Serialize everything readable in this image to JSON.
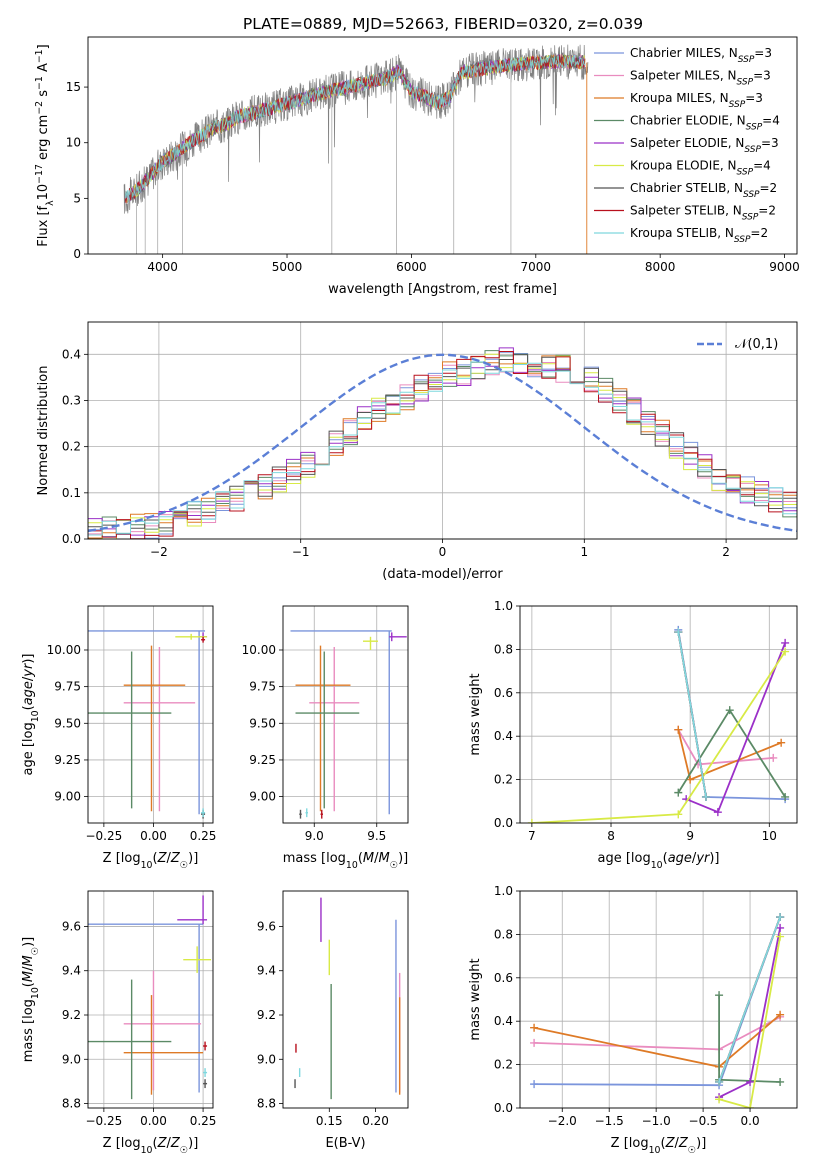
{
  "figure": {
    "title": "PLATE=0889, MJD=52663, FIBERID=0320, z=0.039"
  },
  "chart_data": [
    {
      "id": "spectrum",
      "type": "line",
      "xlabel": "wavelength [Angstrom, rest frame]",
      "ylabel": "Flux [f_λ10^-17 erg cm^-2 s^-1 A^-1]",
      "xlim": [
        3400,
        9100
      ],
      "ylim": [
        0,
        19.5
      ],
      "xticks": [
        4000,
        5000,
        6000,
        7000,
        8000,
        9000
      ],
      "yticks": [
        0,
        5,
        10,
        15
      ],
      "legend": "top-right",
      "grid": false,
      "series": [
        {
          "name": "Chabrier MILES, N_SSP=3",
          "color": "#7b95dc"
        },
        {
          "name": "Salpeter MILES, N_SSP=3",
          "color": "#e98cbf"
        },
        {
          "name": "Kroupa MILES, N_SSP=3",
          "color": "#de7a26"
        },
        {
          "name": "Chabrier ELODIE, N_SSP=4",
          "color": "#5b8a66"
        },
        {
          "name": "Salpeter ELODIE, N_SSP=3",
          "color": "#9b30c8"
        },
        {
          "name": "Kroupa ELODIE, N_SSP=4",
          "color": "#d8ea46"
        },
        {
          "name": "Chabrier STELIB, N_SSP=2",
          "color": "#555555"
        },
        {
          "name": "Salpeter STELIB, N_SSP=2",
          "color": "#b8101d"
        },
        {
          "name": "Kroupa STELIB, N_SSP=2",
          "color": "#7fd8de"
        }
      ],
      "observed_color": "#808080",
      "approx_continuum": {
        "x": [
          3700,
          3800,
          3900,
          4000,
          4100,
          4200,
          4300,
          4400,
          4500,
          4600,
          4800,
          5000,
          5200,
          5400,
          5600,
          5800,
          5900,
          6000,
          6100,
          6200,
          6300,
          6400,
          6600,
          6800,
          7000,
          7200,
          7400
        ],
        "y": [
          5.0,
          5.8,
          7.0,
          8.3,
          9.0,
          9.9,
          10.5,
          11.3,
          11.6,
          12.3,
          12.9,
          13.5,
          14.2,
          14.8,
          15.3,
          15.8,
          16.4,
          14.6,
          14.2,
          13.6,
          14.0,
          16.3,
          16.7,
          17.0,
          17.2,
          17.3,
          17.2
        ]
      }
    },
    {
      "id": "residuals",
      "type": "line",
      "xlabel": "(data-model)/error",
      "ylabel": "Normed distribution",
      "xlim": [
        -2.5,
        2.5
      ],
      "ylim": [
        0,
        0.47
      ],
      "xticks": [
        -2,
        -1,
        0,
        1,
        2
      ],
      "yticks": [
        0.0,
        0.1,
        0.2,
        0.3,
        0.4
      ],
      "grid": true,
      "legend": "top-right",
      "gaussian_label": "𝒩(0,1)",
      "gaussian_color": "#5b7fd6",
      "approx_histogram": {
        "x": [
          -2.5,
          -2.0,
          -1.5,
          -1.0,
          -0.5,
          0.0,
          0.5,
          1.0,
          1.5,
          2.0,
          2.5
        ],
        "y": [
          0.02,
          0.03,
          0.08,
          0.15,
          0.27,
          0.35,
          0.39,
          0.36,
          0.24,
          0.12,
          0.07
        ]
      }
    },
    {
      "id": "age_vs_Z",
      "type": "scatter",
      "xlabel": "Z [log10(Z/Z☉)]",
      "ylabel": "age  [log10(age/yr)]",
      "xlim": [
        -0.33,
        0.3
      ],
      "ylim": [
        8.82,
        10.3
      ],
      "xticks": [
        -0.25,
        0.0,
        0.25
      ],
      "xticklabels": [
        "−0.25",
        "0.00",
        "0.25"
      ],
      "yticks": [
        9.0,
        9.25,
        9.5,
        9.75,
        10.0
      ],
      "grid": true,
      "points": [
        {
          "x": 0.23,
          "y": 10.13,
          "xerr": [
            0.56,
            0.03
          ],
          "yerr": [
            1.25,
            0.0
          ],
          "color": "#7b95dc"
        },
        {
          "x": 0.03,
          "y": 9.64,
          "xerr": [
            0.18,
            0.18
          ],
          "yerr": [
            0.74,
            0.38
          ],
          "color": "#e98cbf"
        },
        {
          "x": -0.01,
          "y": 9.76,
          "xerr": [
            0.14,
            0.17
          ],
          "yerr": [
            0.86,
            0.27
          ],
          "color": "#de7a26"
        },
        {
          "x": -0.11,
          "y": 9.57,
          "xerr": [
            0.22,
            0.2
          ],
          "yerr": [
            0.65,
            0.42
          ],
          "color": "#5b8a66"
        },
        {
          "x": 0.25,
          "y": 10.09,
          "xerr": [
            0.02,
            0.02
          ],
          "yerr": [
            0.03,
            0.03
          ],
          "color": "#9b30c8"
        },
        {
          "x": 0.19,
          "y": 10.09,
          "xerr": [
            0.08,
            0.08
          ],
          "yerr": [
            0.02,
            0.02
          ],
          "color": "#d8ea46"
        },
        {
          "x": 0.25,
          "y": 8.88,
          "xerr": [
            0.01,
            0.01
          ],
          "yerr": [
            0.03,
            0.03
          ],
          "color": "#555555"
        },
        {
          "x": 0.25,
          "y": 10.07,
          "xerr": [
            0.01,
            0.01
          ],
          "yerr": [
            0.02,
            0.02
          ],
          "color": "#b8101d"
        },
        {
          "x": 0.25,
          "y": 8.89,
          "xerr": [
            0.01,
            0.01
          ],
          "yerr": [
            0.03,
            0.03
          ],
          "color": "#7fd8de"
        }
      ]
    },
    {
      "id": "age_vs_mass",
      "type": "scatter",
      "xlabel": "mass [log10(M/M☉)]",
      "ylabel": "",
      "xlim": [
        8.75,
        9.75
      ],
      "ylim": [
        8.82,
        10.3
      ],
      "xticks": [
        9.0,
        9.5
      ],
      "yticks": [
        9.0,
        9.25,
        9.5,
        9.75,
        10.0
      ],
      "grid": true,
      "points": [
        {
          "x": 9.6,
          "y": 10.13,
          "xerr": [
            0.79,
            0.02
          ],
          "yerr": [
            1.25,
            0.0
          ],
          "color": "#7b95dc"
        },
        {
          "x": 9.16,
          "y": 9.64,
          "xerr": [
            0.2,
            0.2
          ],
          "yerr": [
            0.74,
            0.38
          ],
          "color": "#e98cbf"
        },
        {
          "x": 9.05,
          "y": 9.76,
          "xerr": [
            0.2,
            0.24
          ],
          "yerr": [
            0.86,
            0.27
          ],
          "color": "#de7a26"
        },
        {
          "x": 9.08,
          "y": 9.57,
          "xerr": [
            0.23,
            0.28
          ],
          "yerr": [
            0.65,
            0.42
          ],
          "color": "#5b8a66"
        },
        {
          "x": 9.62,
          "y": 10.09,
          "xerr": [
            0.02,
            0.12
          ],
          "yerr": [
            0.03,
            0.03
          ],
          "color": "#9b30c8"
        },
        {
          "x": 9.45,
          "y": 10.06,
          "xerr": [
            0.06,
            0.06
          ],
          "yerr": [
            0.06,
            0.03
          ],
          "color": "#d8ea46"
        },
        {
          "x": 8.89,
          "y": 8.88,
          "xerr": [
            0.01,
            0.01
          ],
          "yerr": [
            0.03,
            0.03
          ],
          "color": "#555555"
        },
        {
          "x": 9.06,
          "y": 8.88,
          "xerr": [
            0.01,
            0.01
          ],
          "yerr": [
            0.03,
            0.03
          ],
          "color": "#b8101d"
        },
        {
          "x": 8.94,
          "y": 8.89,
          "xerr": [
            0.01,
            0.01
          ],
          "yerr": [
            0.03,
            0.03
          ],
          "color": "#7fd8de"
        }
      ]
    },
    {
      "id": "weight_vs_age",
      "type": "line",
      "xlabel": "age  [log10(age/yr)]",
      "ylabel": "mass weight",
      "xlim": [
        6.85,
        10.35
      ],
      "ylim": [
        0,
        1.0
      ],
      "xticks": [
        7,
        8,
        9,
        10
      ],
      "yticks": [
        0.0,
        0.2,
        0.4,
        0.6,
        0.8,
        1.0
      ],
      "grid": true,
      "series": [
        {
          "name": "Chabrier MILES",
          "color": "#7b95dc",
          "x": [
            8.85,
            9.2,
            10.2
          ],
          "y": [
            0.89,
            0.12,
            0.11
          ]
        },
        {
          "name": "Salpeter MILES",
          "color": "#e98cbf",
          "x": [
            8.85,
            9.1,
            10.05
          ],
          "y": [
            0.43,
            0.27,
            0.3
          ]
        },
        {
          "name": "Kroupa MILES",
          "color": "#de7a26",
          "x": [
            8.85,
            9.0,
            10.15
          ],
          "y": [
            0.43,
            0.2,
            0.37
          ]
        },
        {
          "name": "Chabrier ELODIE",
          "color": "#5b8a66",
          "x": [
            8.85,
            9.5,
            10.2
          ],
          "y": [
            0.14,
            0.52,
            0.12
          ]
        },
        {
          "name": "Salpeter ELODIE",
          "color": "#9b30c8",
          "x": [
            8.95,
            9.35,
            10.2
          ],
          "y": [
            0.11,
            0.05,
            0.83
          ]
        },
        {
          "name": "Kroupa ELODIE",
          "color": "#d8ea46",
          "x": [
            7.0,
            8.85,
            10.2
          ],
          "y": [
            0.0,
            0.04,
            0.79
          ]
        },
        {
          "name": "Chabrier STELIB",
          "color": "#555555",
          "x": [
            8.85,
            9.2
          ],
          "y": [
            0.88,
            0.12
          ]
        },
        {
          "name": "Salpeter STELIB",
          "color": "#b8101d",
          "x": [
            8.85,
            9.2
          ],
          "y": [
            0.88,
            0.12
          ]
        },
        {
          "name": "Kroupa STELIB",
          "color": "#7fd8de",
          "x": [
            8.85,
            9.2
          ],
          "y": [
            0.88,
            0.12
          ]
        }
      ]
    },
    {
      "id": "mass_vs_Z",
      "type": "scatter",
      "xlabel": "Z [log10(Z/Z☉)]",
      "ylabel": "mass [log10(M/M☉)]",
      "xlim": [
        -0.33,
        0.3
      ],
      "ylim": [
        8.78,
        9.76
      ],
      "xticks": [
        -0.25,
        0.0,
        0.25
      ],
      "xticklabels": [
        "−0.25",
        "0.00",
        "0.25"
      ],
      "yticks": [
        8.8,
        9.0,
        9.2,
        9.4,
        9.6
      ],
      "grid": true,
      "points": [
        {
          "x": 0.23,
          "y": 9.61,
          "xerr": [
            0.56,
            0.02
          ],
          "yerr": [
            0.76,
            0.0
          ],
          "color": "#7b95dc"
        },
        {
          "x": 0.0,
          "y": 9.16,
          "xerr": [
            0.15,
            0.24
          ],
          "yerr": [
            0.3,
            0.24
          ],
          "color": "#e98cbf"
        },
        {
          "x": -0.01,
          "y": 9.03,
          "xerr": [
            0.14,
            0.26
          ],
          "yerr": [
            0.19,
            0.26
          ],
          "color": "#de7a26"
        },
        {
          "x": -0.11,
          "y": 9.08,
          "xerr": [
            0.22,
            0.2
          ],
          "yerr": [
            0.26,
            0.28
          ],
          "color": "#5b8a66"
        },
        {
          "x": 0.25,
          "y": 9.63,
          "xerr": [
            0.13,
            0.02
          ],
          "yerr": [
            0.02,
            0.11
          ],
          "color": "#9b30c8"
        },
        {
          "x": 0.22,
          "y": 9.45,
          "xerr": [
            0.07,
            0.07
          ],
          "yerr": [
            0.06,
            0.06
          ],
          "color": "#d8ea46"
        },
        {
          "x": 0.26,
          "y": 8.89,
          "xerr": [
            0.01,
            0.01
          ],
          "yerr": [
            0.02,
            0.02
          ],
          "color": "#555555"
        },
        {
          "x": 0.26,
          "y": 9.06,
          "xerr": [
            0.01,
            0.01
          ],
          "yerr": [
            0.02,
            0.02
          ],
          "color": "#b8101d"
        },
        {
          "x": 0.26,
          "y": 8.94,
          "xerr": [
            0.01,
            0.01
          ],
          "yerr": [
            0.02,
            0.02
          ],
          "color": "#7fd8de"
        }
      ]
    },
    {
      "id": "mass_vs_ebv",
      "type": "scatter",
      "xlabel": "E(B-V)",
      "ylabel": "",
      "xlim": [
        0.1,
        0.235
      ],
      "ylim": [
        8.78,
        9.76
      ],
      "xticks": [
        0.15,
        0.2
      ],
      "yticks": [
        8.8,
        9.0,
        9.2,
        9.4,
        9.6
      ],
      "grid": false,
      "points": [
        {
          "x": 0.222,
          "y": 9.24,
          "xerr": [
            0.0,
            0.0
          ],
          "yerr": [
            0.39,
            0.39
          ],
          "color": "#7b95dc"
        },
        {
          "x": 0.226,
          "y": 9.12,
          "xerr": [
            0.0,
            0.0
          ],
          "yerr": [
            0.27,
            0.27
          ],
          "color": "#e98cbf"
        },
        {
          "x": 0.226,
          "y": 9.06,
          "xerr": [
            0.0,
            0.0
          ],
          "yerr": [
            0.22,
            0.22
          ],
          "color": "#de7a26"
        },
        {
          "x": 0.152,
          "y": 9.08,
          "xerr": [
            0.0,
            0.0
          ],
          "yerr": [
            0.26,
            0.26
          ],
          "color": "#5b8a66"
        },
        {
          "x": 0.141,
          "y": 9.63,
          "xerr": [
            0.0,
            0.0
          ],
          "yerr": [
            0.1,
            0.1
          ],
          "color": "#9b30c8"
        },
        {
          "x": 0.15,
          "y": 9.46,
          "xerr": [
            0.0,
            0.0
          ],
          "yerr": [
            0.08,
            0.08
          ],
          "color": "#d8ea46"
        },
        {
          "x": 0.113,
          "y": 8.89,
          "xerr": [
            0.0,
            0.0
          ],
          "yerr": [
            0.02,
            0.02
          ],
          "color": "#555555"
        },
        {
          "x": 0.114,
          "y": 9.05,
          "xerr": [
            0.0,
            0.0
          ],
          "yerr": [
            0.02,
            0.02
          ],
          "color": "#b8101d"
        },
        {
          "x": 0.118,
          "y": 8.94,
          "xerr": [
            0.0,
            0.0
          ],
          "yerr": [
            0.02,
            0.02
          ],
          "color": "#7fd8de"
        }
      ]
    },
    {
      "id": "weight_vs_Z",
      "type": "line",
      "xlabel": "Z [log10(Z/Z☉)]",
      "ylabel": "mass weight",
      "xlim": [
        -2.45,
        0.5
      ],
      "ylim": [
        0,
        1.0
      ],
      "xticks": [
        -2.0,
        -1.5,
        -1.0,
        -0.5,
        0.0
      ],
      "xticklabels": [
        "−2.0",
        "−1.5",
        "−1.0",
        "−0.5",
        "0.0"
      ],
      "yticks": [
        0.0,
        0.2,
        0.4,
        0.6,
        0.8,
        1.0
      ],
      "grid": true,
      "series": [
        {
          "name": "Chabrier MILES",
          "color": "#7b95dc",
          "x": [
            -2.3,
            -0.33,
            0.32
          ],
          "y": [
            0.11,
            0.105,
            0.88
          ]
        },
        {
          "name": "Salpeter MILES",
          "color": "#e98cbf",
          "x": [
            -2.3,
            -0.33,
            0.32
          ],
          "y": [
            0.3,
            0.27,
            0.42
          ]
        },
        {
          "name": "Kroupa MILES",
          "color": "#de7a26",
          "x": [
            -2.3,
            -0.33,
            0.32
          ],
          "y": [
            0.37,
            0.19,
            0.43
          ]
        },
        {
          "name": "Chabrier ELODIE",
          "color": "#5b8a66",
          "x": [
            -0.33,
            -0.33,
            0.32
          ],
          "y": [
            0.52,
            0.13,
            0.12
          ]
        },
        {
          "name": "Salpeter ELODIE",
          "color": "#9b30c8",
          "x": [
            -0.33,
            0.0,
            0.32
          ],
          "y": [
            0.05,
            0.12,
            0.83
          ]
        },
        {
          "name": "Kroupa ELODIE",
          "color": "#d8ea46",
          "x": [
            -0.33,
            0.0,
            0.32
          ],
          "y": [
            0.04,
            0.0,
            0.79
          ]
        },
        {
          "name": "Chabrier STELIB",
          "color": "#555555",
          "x": [
            -0.33,
            0.32
          ],
          "y": [
            0.12,
            0.88
          ]
        },
        {
          "name": "Salpeter STELIB",
          "color": "#b8101d",
          "x": [
            -0.33,
            0.32
          ],
          "y": [
            0.12,
            0.88
          ]
        },
        {
          "name": "Kroupa STELIB",
          "color": "#7fd8de",
          "x": [
            -0.33,
            0.32
          ],
          "y": [
            0.12,
            0.88
          ]
        }
      ]
    }
  ]
}
